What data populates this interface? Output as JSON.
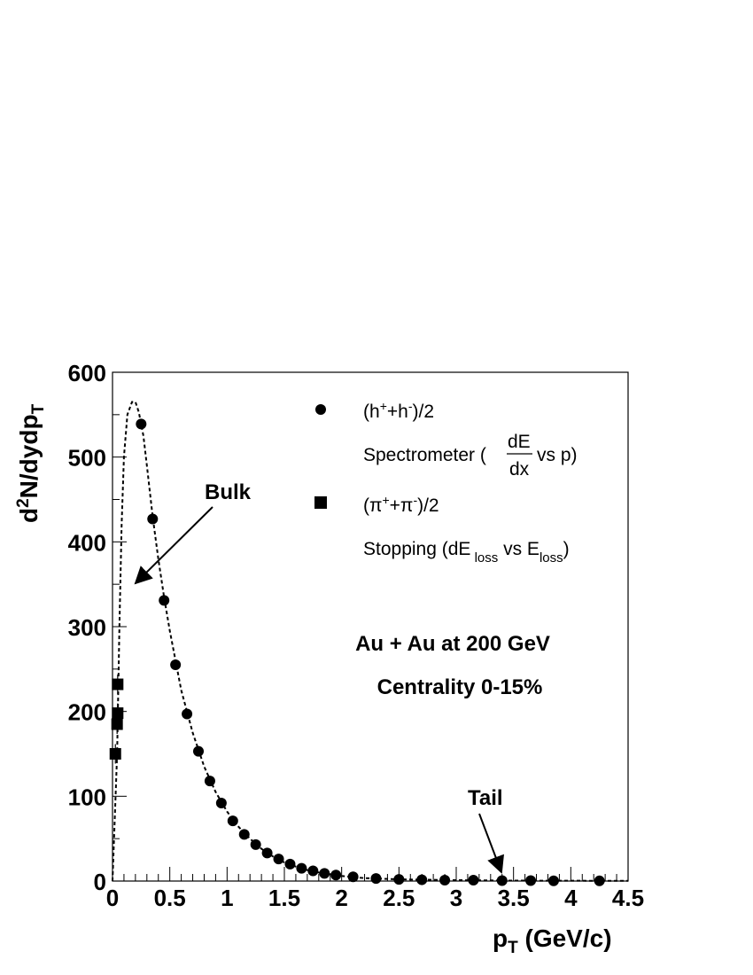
{
  "chart_data": {
    "type": "scatter",
    "xlabel": {
      "main": "p",
      "sub": "T",
      "unit": "(GeV/c)"
    },
    "ylabel": {
      "pre": "d",
      "sup": "2",
      "mid": "N/dydp",
      "sub": "T"
    },
    "xlim": [
      0,
      4.5
    ],
    "ylim": [
      0,
      600
    ],
    "x_ticks": [
      "0",
      "0.5",
      "1",
      "1.5",
      "2",
      "2.5",
      "3",
      "3.5",
      "4",
      "4.5"
    ],
    "y_ticks": [
      "0",
      "100",
      "200",
      "300",
      "400",
      "500",
      "600"
    ],
    "grid": false,
    "series": [
      {
        "name": "(h⁺+h⁻)/2",
        "marker": "circle",
        "points": [
          [
            0.25,
            539
          ],
          [
            0.35,
            427
          ],
          [
            0.45,
            331
          ],
          [
            0.55,
            255
          ],
          [
            0.65,
            197
          ],
          [
            0.75,
            153
          ],
          [
            0.85,
            118
          ],
          [
            0.95,
            92
          ],
          [
            1.05,
            71
          ],
          [
            1.15,
            55
          ],
          [
            1.25,
            43
          ],
          [
            1.35,
            33
          ],
          [
            1.45,
            26
          ],
          [
            1.55,
            20
          ],
          [
            1.65,
            15
          ],
          [
            1.75,
            12
          ],
          [
            1.85,
            9
          ],
          [
            1.95,
            7
          ],
          [
            2.1,
            5
          ],
          [
            2.3,
            3
          ],
          [
            2.5,
            2
          ],
          [
            2.7,
            1.5
          ],
          [
            2.9,
            1
          ],
          [
            3.15,
            1
          ],
          [
            3.4,
            0.5
          ],
          [
            3.65,
            0.5
          ],
          [
            3.85,
            0.3
          ],
          [
            4.25,
            0.2
          ]
        ]
      },
      {
        "name": "(π⁺+π⁻)/2",
        "marker": "square",
        "points": [
          [
            0.025,
            150
          ],
          [
            0.04,
            185
          ],
          [
            0.045,
            198
          ],
          [
            0.045,
            232
          ]
        ]
      },
      {
        "name": "fit",
        "style": "dashed",
        "points": [
          [
            0.0,
            0
          ],
          [
            0.04,
            150
          ],
          [
            0.06,
            300
          ],
          [
            0.08,
            420
          ],
          [
            0.1,
            500
          ],
          [
            0.13,
            550
          ],
          [
            0.17,
            565
          ],
          [
            0.2,
            565
          ],
          [
            0.23,
            553
          ],
          [
            0.27,
            525
          ],
          [
            0.3,
            490
          ],
          [
            0.35,
            430
          ],
          [
            0.4,
            380
          ],
          [
            0.45,
            335
          ],
          [
            0.5,
            295
          ],
          [
            0.6,
            225
          ],
          [
            0.7,
            175
          ],
          [
            0.8,
            135
          ],
          [
            0.9,
            105
          ],
          [
            1.0,
            82
          ],
          [
            1.1,
            64
          ],
          [
            1.2,
            50
          ],
          [
            1.3,
            38
          ],
          [
            1.4,
            29
          ],
          [
            1.5,
            22
          ],
          [
            1.6,
            17
          ],
          [
            1.7,
            13
          ],
          [
            1.8,
            10
          ],
          [
            1.9,
            8
          ],
          [
            2.0,
            6
          ],
          [
            2.2,
            3.5
          ],
          [
            2.5,
            2
          ],
          [
            3.0,
            1
          ],
          [
            3.5,
            0.5
          ],
          [
            4.5,
            0.2
          ]
        ]
      }
    ],
    "legend": {
      "placement": "top-right",
      "items": [
        {
          "marker": "circle",
          "label_html": "(h<tspan baseline-shift=\"super\" font-size=\"14\">+</tspan>+h<tspan baseline-shift=\"super\" font-size=\"14\">-</tspan>)/2"
        },
        {
          "marker": "none",
          "label": "Spectrometer ( dE/dx vs p)"
        },
        {
          "marker": "square",
          "label_html": "(π<tspan baseline-shift=\"super\" font-size=\"14\">+</tspan>+π<tspan baseline-shift=\"super\" font-size=\"14\">-</tspan>)/2"
        },
        {
          "marker": "none",
          "label": "Stopping (dE loss vs E loss)"
        }
      ]
    },
    "annotations": {
      "system": "Au + Au at 200 GeV",
      "centrality": "Centrality 0-15%",
      "bulk": "Bulk",
      "tail": "Tail"
    }
  }
}
